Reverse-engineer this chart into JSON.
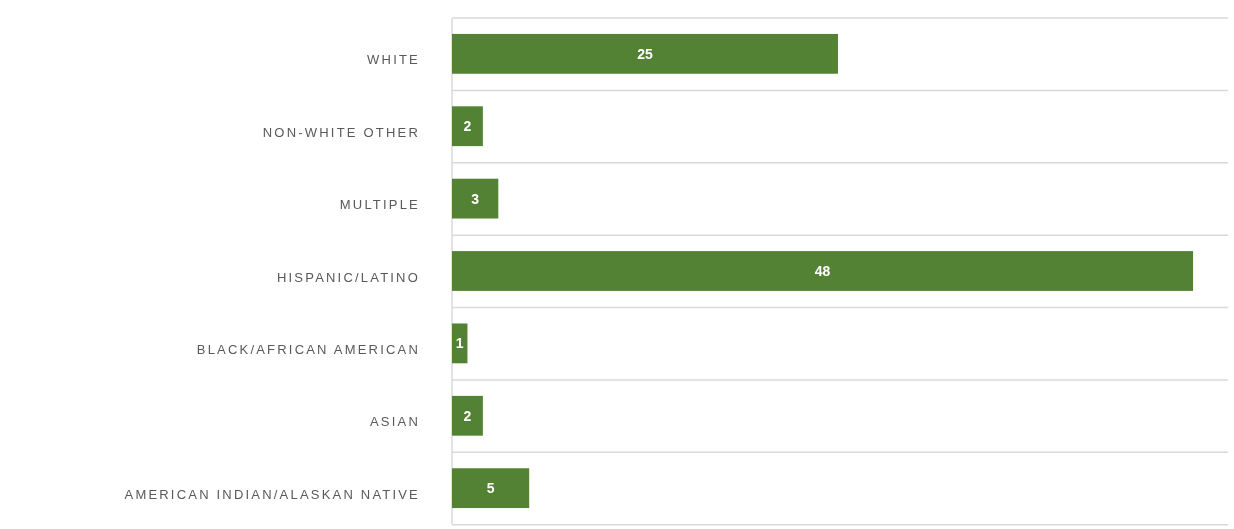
{
  "chart_data": {
    "type": "bar",
    "orientation": "horizontal",
    "categories": [
      "WHITE",
      "NON-WHITE OTHER",
      "MULTIPLE",
      "HISPANIC/LATINO",
      "BLACK/AFRICAN AMERICAN",
      "ASIAN",
      "AMERICAN INDIAN/ALASKAN NATIVE"
    ],
    "values": [
      25,
      2,
      3,
      48,
      1,
      2,
      5
    ],
    "color": "#548235",
    "data_labels": true,
    "grid": "y"
  }
}
